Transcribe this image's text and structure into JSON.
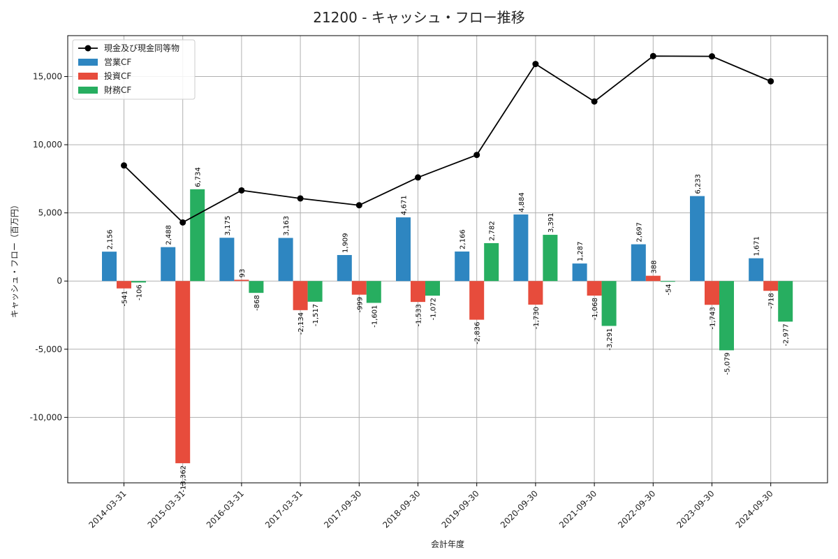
{
  "chart_data": {
    "type": "bar",
    "title": "21200 - キャッシュ・フロー推移",
    "xlabel": "会計年度",
    "ylabel": "キャッシュ・フロー（百万円）",
    "categories": [
      "2014-03-31",
      "2015-03-31",
      "2016-03-31",
      "2017-03-31",
      "2017-09-30",
      "2018-09-30",
      "2019-09-30",
      "2020-09-30",
      "2021-09-30",
      "2022-09-30",
      "2023-09-30",
      "2024-09-30"
    ],
    "ylim": [
      -14800,
      18000
    ],
    "yticks": [
      -10000,
      -5000,
      0,
      5000,
      10000,
      15000
    ],
    "ytick_labels": [
      "-10,000",
      "-5,000",
      "0",
      "5,000",
      "10,000",
      "15,000"
    ],
    "grid": true,
    "legend_position": "top-left",
    "series": [
      {
        "name": "営業CF",
        "kind": "bar",
        "color": "#2e86c1",
        "values": [
          2156,
          2488,
          3175,
          3163,
          1909,
          4671,
          2166,
          4884,
          1287,
          2697,
          6233,
          1671
        ],
        "labels": [
          "2,156",
          "2,488",
          "3,175",
          "3,163",
          "1,909",
          "4,671",
          "2,166",
          "4,884",
          "1,287",
          "2,697",
          "6,233",
          "1,671"
        ]
      },
      {
        "name": "投資CF",
        "kind": "bar",
        "color": "#e74c3c",
        "values": [
          -541,
          -13362,
          93,
          -2134,
          -999,
          -1533,
          -2836,
          -1730,
          -1068,
          388,
          -1743,
          -718
        ],
        "labels": [
          "-541",
          "-13,362",
          "93",
          "-2,134",
          "-999",
          "-1,533",
          "-2,836",
          "-1,730",
          "-1,068",
          "388",
          "-1,743",
          "-718"
        ]
      },
      {
        "name": "財務CF",
        "kind": "bar",
        "color": "#27ae60",
        "values": [
          -106,
          6734,
          -868,
          -1517,
          -1601,
          -1072,
          2782,
          3391,
          -3291,
          -54,
          -5079,
          -2977
        ],
        "labels": [
          "-106",
          "6,734",
          "-868",
          "-1,517",
          "-1,601",
          "-1,072",
          "2,782",
          "3,391",
          "-3,291",
          "-54",
          "-5,079",
          "-2,977"
        ]
      },
      {
        "name": "現金及び現金同等物",
        "kind": "line",
        "color": "#000000",
        "values": [
          8480,
          4300,
          6650,
          6060,
          5560,
          7600,
          9250,
          15920,
          13170,
          16500,
          16480,
          14650
        ]
      }
    ]
  }
}
